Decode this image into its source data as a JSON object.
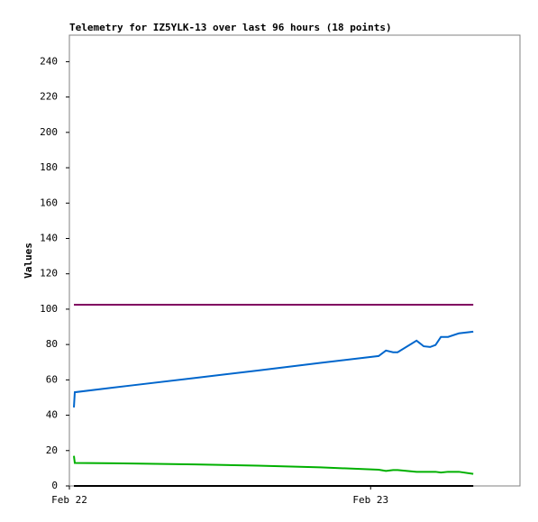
{
  "chart_data": {
    "type": "line",
    "title": "Telemetry for IZ5YLK-13 over last 96 hours (18 points)",
    "y_label": "Values",
    "x": [
      0.36,
      0.43,
      5,
      10,
      15,
      20,
      24.64,
      25.22,
      25.79,
      26.15,
      27.66,
      28.23,
      28.74,
      29.17,
      29.6,
      30.17,
      31.03,
      32.18
    ],
    "xlim": [
      0,
      35.9
    ],
    "xticks": [
      {
        "value": 0,
        "label": "Feb 22"
      },
      {
        "value": 24,
        "label": "Feb 23"
      }
    ],
    "ylim": [
      0,
      255
    ],
    "yticks": [
      0,
      20,
      40,
      60,
      80,
      100,
      120,
      140,
      160,
      180,
      200,
      220,
      240
    ],
    "series": [
      {
        "color": "#800060",
        "values": [
          102.5,
          102.5,
          102.5,
          102.5,
          102.5,
          102.5,
          102.5,
          102.5,
          102.5,
          102.5,
          102.5,
          102.5,
          102.5,
          102.5,
          102.5,
          102.5,
          102.5,
          102.5
        ]
      },
      {
        "color": "#0066cc",
        "values": [
          44.4,
          53,
          56.9,
          61.1,
          65.3,
          69.6,
          73.5,
          76.6,
          75.6,
          75.6,
          82.2,
          79,
          78.6,
          79.7,
          84.3,
          84.3,
          86.3,
          87.3
        ]
      },
      {
        "color": "#00b000",
        "values": [
          17,
          13,
          12.7,
          12.2,
          11.5,
          10.5,
          9.2,
          8.5,
          9,
          9,
          8,
          8,
          8,
          8,
          7.6,
          8,
          8,
          6.8
        ]
      },
      {
        "color": "#000000",
        "values": [
          0,
          0,
          0,
          0,
          0,
          0,
          0,
          0,
          0,
          0,
          0,
          0,
          0,
          0,
          0,
          0,
          0,
          0
        ]
      }
    ]
  }
}
